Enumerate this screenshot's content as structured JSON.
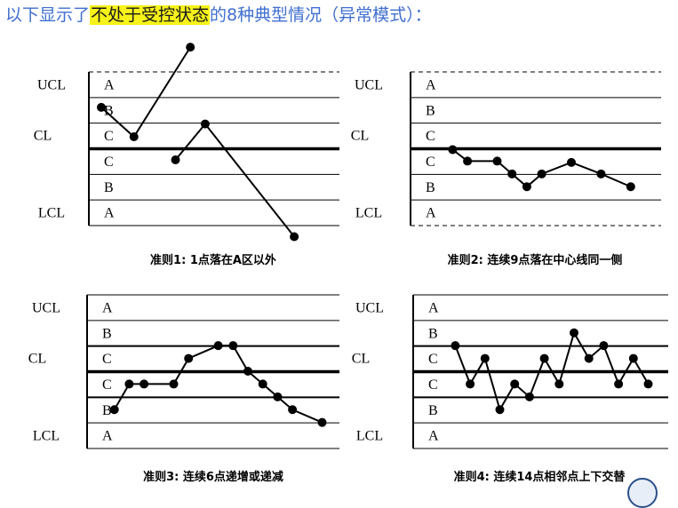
{
  "title": {
    "prefix": "以下显示了",
    "highlight": "不处于受控状态",
    "suffix": "的8种典型情况（异常模式）：",
    "color": "#3f6fd0",
    "highlight_color": "#f6f21a"
  },
  "labels": {
    "ucl": "UCL",
    "cl": "CL",
    "lcl": "LCL"
  },
  "zones": [
    "A",
    "B",
    "C",
    "C",
    "B",
    "A"
  ],
  "chart_data": [
    {
      "type": "line",
      "caption": "准则1: 1点落在A区以外",
      "top_line": "dashed",
      "bottom_line": "solid",
      "ylim": [
        -3,
        3
      ],
      "x": [
        1,
        2,
        3,
        4,
        5,
        6,
        7,
        8,
        9,
        10,
        11,
        12,
        13,
        14,
        15,
        16,
        17,
        18,
        19
      ],
      "segments": [
        {
          "x": [
            1,
            3.2,
            7
          ],
          "y": [
            1.6,
            0.45,
            3.95
          ]
        },
        {
          "x": [
            6,
            8,
            14
          ],
          "y": [
            -0.45,
            0.95,
            -3.45
          ]
        }
      ]
    },
    {
      "type": "line",
      "caption": "准则2: 连续9点落在中心线同一侧",
      "top_line": "dashed",
      "bottom_line": "dashed",
      "ylim": [
        -3,
        3
      ],
      "segments": [
        {
          "x": [
            3,
            4,
            6,
            7,
            8,
            9,
            11,
            13,
            15
          ],
          "y": [
            -0.05,
            -0.5,
            -0.5,
            -1.0,
            -1.5,
            -1.0,
            -0.55,
            -1.0,
            -1.5
          ]
        }
      ]
    },
    {
      "type": "line",
      "caption": "准则3: 连续6点递增或递减",
      "top_line": "solid",
      "bottom_line": "solid",
      "ylim": [
        -3,
        3
      ],
      "segments": [
        {
          "x": [
            2,
            3,
            4,
            6,
            7,
            9,
            10,
            11,
            12,
            13,
            14,
            16
          ],
          "y": [
            -1.5,
            -0.5,
            -0.5,
            -0.5,
            0.5,
            1.0,
            1.0,
            0.0,
            -0.5,
            -1.0,
            -1.5,
            -2.0
          ]
        }
      ]
    },
    {
      "type": "line",
      "caption": "准则4: 连续14点相邻点上下交替",
      "top_line": "solid",
      "bottom_line": "solid",
      "ylim": [
        -3,
        3
      ],
      "segments": [
        {
          "x": [
            3,
            4,
            5,
            6,
            7,
            8,
            9,
            10,
            11,
            12,
            13,
            14,
            15,
            16
          ],
          "y": [
            1.0,
            -0.5,
            0.5,
            -1.5,
            -0.5,
            -1.0,
            0.5,
            -0.5,
            1.5,
            0.5,
            1.0,
            -0.5,
            0.5,
            -0.5
          ]
        }
      ]
    }
  ]
}
